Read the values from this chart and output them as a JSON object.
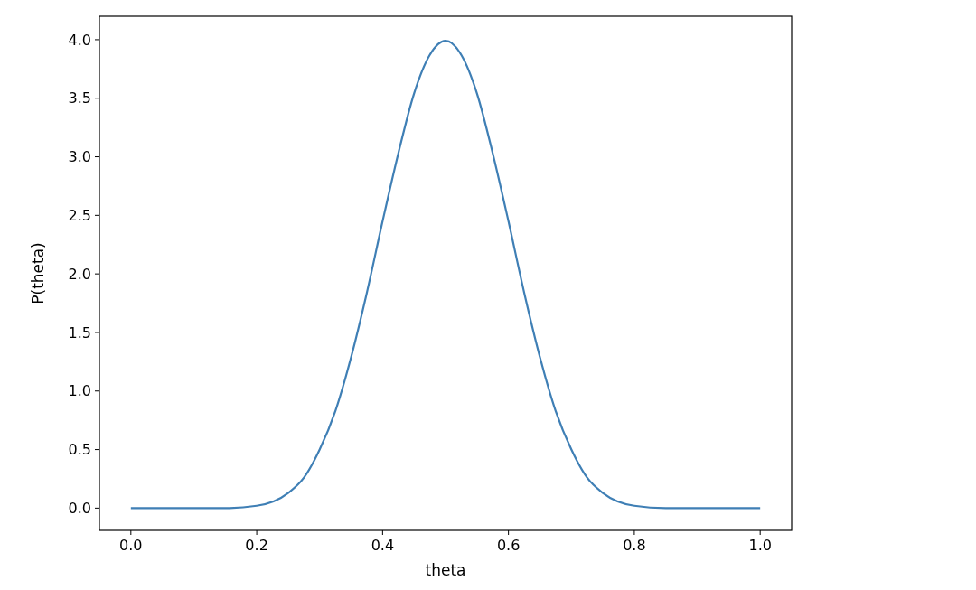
{
  "chart_data": {
    "type": "line",
    "xlabel": "theta",
    "ylabel": "P(theta)",
    "x": [
      0,
      0.05,
      0.1,
      0.15,
      0.2,
      0.25,
      0.275,
      0.3,
      0.325,
      0.35,
      0.375,
      0.4,
      0.425,
      0.45,
      0.475,
      0.5,
      0.525,
      0.55,
      0.575,
      0.6,
      0.625,
      0.65,
      0.675,
      0.7,
      0.725,
      0.75,
      0.8,
      0.85,
      0.9,
      0.95,
      1
    ],
    "series": [
      {
        "color": "#3f7fb5",
        "values": [
          0,
          0,
          0,
          0,
          0.02,
          0.13,
          0.26,
          0.5,
          0.83,
          1.29,
          1.84,
          2.45,
          3.03,
          3.54,
          3.87,
          3.99,
          3.87,
          3.54,
          3.03,
          2.45,
          1.84,
          1.29,
          0.83,
          0.5,
          0.26,
          0.13,
          0.02,
          0,
          0,
          0,
          0
        ]
      }
    ],
    "xlim": [
      -0.05,
      1.05
    ],
    "ylim": [
      -0.19,
      4.2
    ],
    "xticks": [
      {
        "value": 0,
        "label": "0.0"
      },
      0.2,
      0.4,
      0.6,
      0.8,
      {
        "value": 1,
        "label": "1.0"
      }
    ],
    "yticks": [
      {
        "value": 0,
        "label": "0.0"
      },
      0.5,
      {
        "value": 1,
        "label": "1.0"
      },
      1.5,
      {
        "value": 2,
        "label": "2.0"
      },
      2.5,
      {
        "value": 3,
        "label": "3.0"
      },
      3.5,
      {
        "value": 4,
        "label": "4.0"
      }
    ],
    "grid": false,
    "marker": "none",
    "line_style": "solid"
  }
}
